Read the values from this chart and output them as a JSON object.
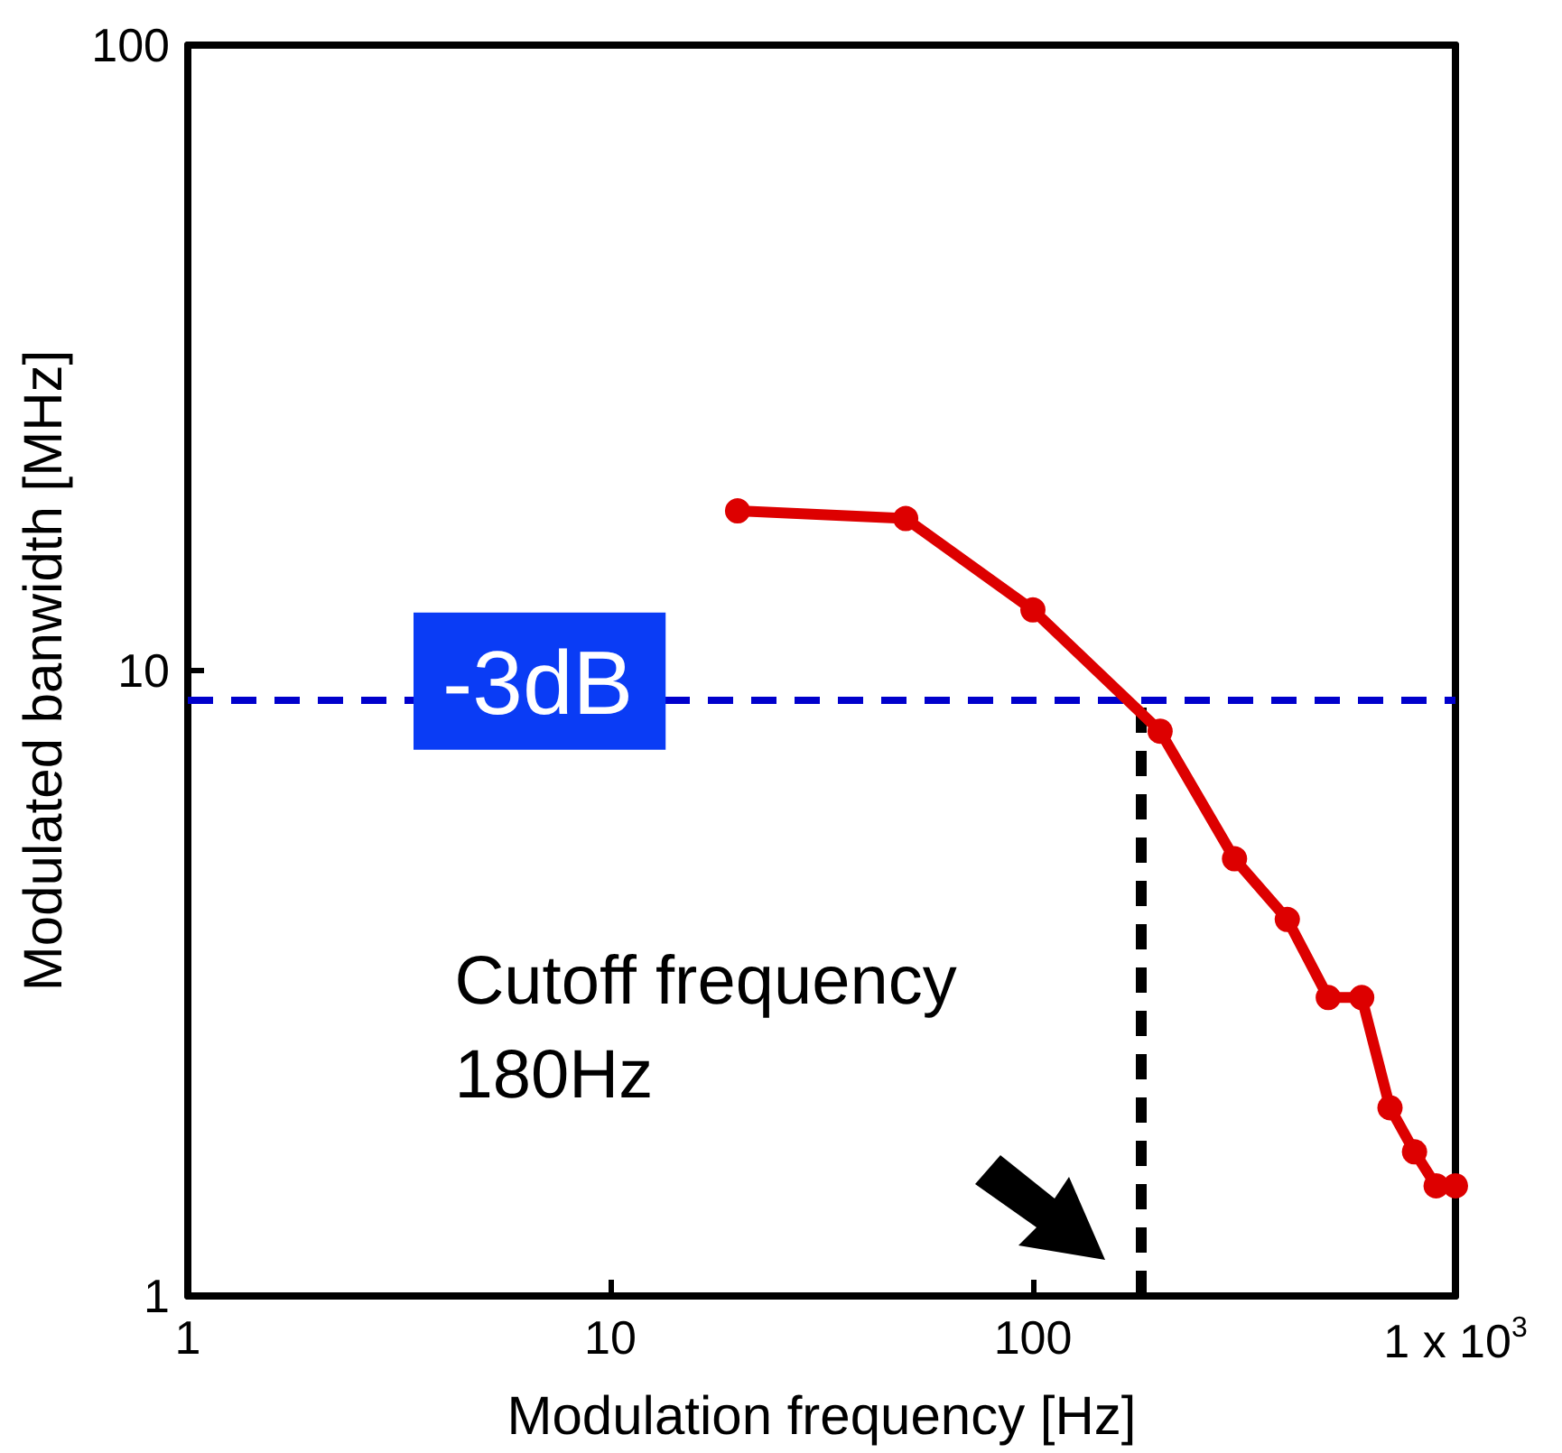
{
  "chart_data": {
    "type": "line",
    "xlabel": "Modulation frequency [Hz]",
    "ylabel": "Modulated banwidth [MHz]",
    "log": "xy",
    "xlim": [
      1,
      1000
    ],
    "xticks": [
      1,
      10,
      100,
      {
        "value": 1000,
        "label": "1 x 10$^{3}$"
      }
    ],
    "ylim": [
      1,
      100
    ],
    "yticks": [
      1,
      10,
      100
    ],
    "grid": false,
    "marker": "circle",
    "line_style": "solid",
    "series": [
      {
        "color": "#dd0000",
        "x": [
          20,
          50,
          100,
          200,
          300,
          400,
          500,
          600,
          700,
          800,
          900,
          1000
        ],
        "values": [
          18,
          17.5,
          12.5,
          8,
          5,
          4,
          3,
          3,
          2,
          1.7,
          1.5,
          1.5
        ]
      }
    ],
    "ref_lines": [
      {
        "axis": "y",
        "value": 9,
        "label": "-3dB",
        "color": "#0000cc",
        "line_style": "dashed"
      },
      {
        "axis": "x",
        "value": 180,
        "label": "Cutoff frequency 180Hz",
        "color": "#000000",
        "line_style": "dashed"
      }
    ]
  }
}
